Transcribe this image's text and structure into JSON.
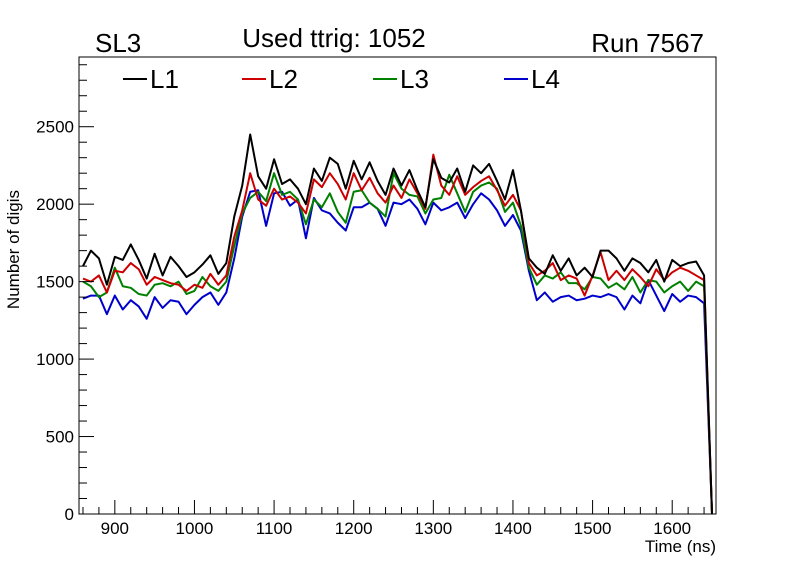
{
  "chart_data": {
    "type": "line",
    "title": "Used ttrig: 1052",
    "left_label": "SL3",
    "right_label": "Run 7567",
    "xlabel": "Time (ns)",
    "ylabel": "Number of digis",
    "xlim": [
      855,
      1655
    ],
    "ylim": [
      0,
      2950
    ],
    "x_ticks": [
      900,
      1000,
      1100,
      1200,
      1300,
      1400,
      1500,
      1600
    ],
    "y_ticks": [
      0,
      500,
      1000,
      1500,
      2000,
      2500
    ],
    "x": [
      860,
      870,
      880,
      890,
      900,
      910,
      920,
      930,
      940,
      950,
      960,
      970,
      980,
      990,
      1000,
      1010,
      1020,
      1030,
      1040,
      1050,
      1060,
      1070,
      1080,
      1090,
      1100,
      1110,
      1120,
      1130,
      1140,
      1150,
      1160,
      1170,
      1180,
      1190,
      1200,
      1210,
      1220,
      1230,
      1240,
      1250,
      1260,
      1270,
      1280,
      1290,
      1300,
      1310,
      1320,
      1330,
      1340,
      1350,
      1360,
      1370,
      1380,
      1390,
      1400,
      1410,
      1420,
      1430,
      1440,
      1450,
      1460,
      1470,
      1480,
      1490,
      1500,
      1510,
      1520,
      1530,
      1540,
      1550,
      1560,
      1570,
      1580,
      1590,
      1600,
      1610,
      1620,
      1630,
      1640,
      1650
    ],
    "series": [
      {
        "name": "L1",
        "color": "#000000",
        "values": [
          1600,
          1700,
          1650,
          1480,
          1660,
          1640,
          1740,
          1640,
          1520,
          1680,
          1540,
          1660,
          1600,
          1530,
          1560,
          1610,
          1670,
          1550,
          1620,
          1920,
          2120,
          2450,
          2180,
          2100,
          2290,
          2130,
          2160,
          2100,
          2000,
          2230,
          2150,
          2300,
          2260,
          2100,
          2280,
          2160,
          2270,
          2150,
          2060,
          2230,
          2120,
          2220,
          2090,
          1980,
          2290,
          2170,
          2140,
          2230,
          2080,
          2250,
          2200,
          2260,
          2150,
          2030,
          2220,
          1960,
          1650,
          1590,
          1550,
          1670,
          1570,
          1650,
          1540,
          1590,
          1530,
          1700,
          1700,
          1650,
          1570,
          1650,
          1620,
          1560,
          1640,
          1500,
          1640,
          1600,
          1620,
          1630,
          1540,
          0
        ]
      },
      {
        "name": "L2",
        "color": "#cc0000",
        "values": [
          1520,
          1500,
          1540,
          1430,
          1570,
          1560,
          1620,
          1580,
          1480,
          1530,
          1510,
          1490,
          1480,
          1440,
          1480,
          1460,
          1550,
          1480,
          1540,
          1790,
          1960,
          2200,
          2030,
          1990,
          2100,
          2030,
          2050,
          2010,
          1940,
          2160,
          2110,
          2200,
          2130,
          2030,
          2200,
          2090,
          2170,
          2070,
          2010,
          2120,
          2040,
          2160,
          2070,
          1970,
          2320,
          2120,
          2060,
          2180,
          2060,
          2110,
          2150,
          2180,
          2090,
          1990,
          2060,
          1960,
          1620,
          1540,
          1570,
          1620,
          1510,
          1540,
          1520,
          1410,
          1540,
          1690,
          1510,
          1570,
          1510,
          1580,
          1530,
          1470,
          1580,
          1510,
          1560,
          1590,
          1570,
          1540,
          1510,
          0
        ]
      },
      {
        "name": "L3",
        "color": "#008000",
        "values": [
          1500,
          1470,
          1400,
          1430,
          1590,
          1470,
          1460,
          1420,
          1410,
          1480,
          1490,
          1470,
          1500,
          1420,
          1440,
          1530,
          1470,
          1440,
          1500,
          1730,
          1940,
          2040,
          2080,
          2020,
          2200,
          2060,
          2080,
          2030,
          1870,
          2030,
          1980,
          2070,
          1950,
          1880,
          2080,
          2090,
          2010,
          1970,
          1920,
          2200,
          2100,
          2060,
          2050,
          1940,
          2030,
          2040,
          2190,
          2070,
          1950,
          2080,
          2120,
          2140,
          2100,
          1950,
          2010,
          1860,
          1590,
          1480,
          1540,
          1520,
          1560,
          1490,
          1490,
          1450,
          1530,
          1520,
          1460,
          1490,
          1450,
          1530,
          1430,
          1510,
          1500,
          1430,
          1470,
          1500,
          1440,
          1500,
          1470,
          0
        ]
      },
      {
        "name": "L4",
        "color": "#0000cc",
        "values": [
          1390,
          1410,
          1410,
          1290,
          1410,
          1320,
          1380,
          1340,
          1260,
          1400,
          1330,
          1380,
          1370,
          1290,
          1350,
          1400,
          1430,
          1350,
          1430,
          1650,
          1920,
          2080,
          2090,
          1860,
          2070,
          2080,
          1990,
          2030,
          1780,
          2040,
          1960,
          1940,
          1880,
          1830,
          1980,
          1980,
          2010,
          1970,
          1860,
          2010,
          2000,
          2030,
          1970,
          1870,
          2010,
          1960,
          1980,
          2010,
          1910,
          2000,
          2070,
          2030,
          1960,
          1860,
          1930,
          1830,
          1570,
          1380,
          1430,
          1370,
          1400,
          1410,
          1380,
          1390,
          1410,
          1400,
          1420,
          1400,
          1320,
          1410,
          1360,
          1510,
          1410,
          1310,
          1420,
          1370,
          1410,
          1400,
          1360,
          0
        ]
      }
    ]
  }
}
